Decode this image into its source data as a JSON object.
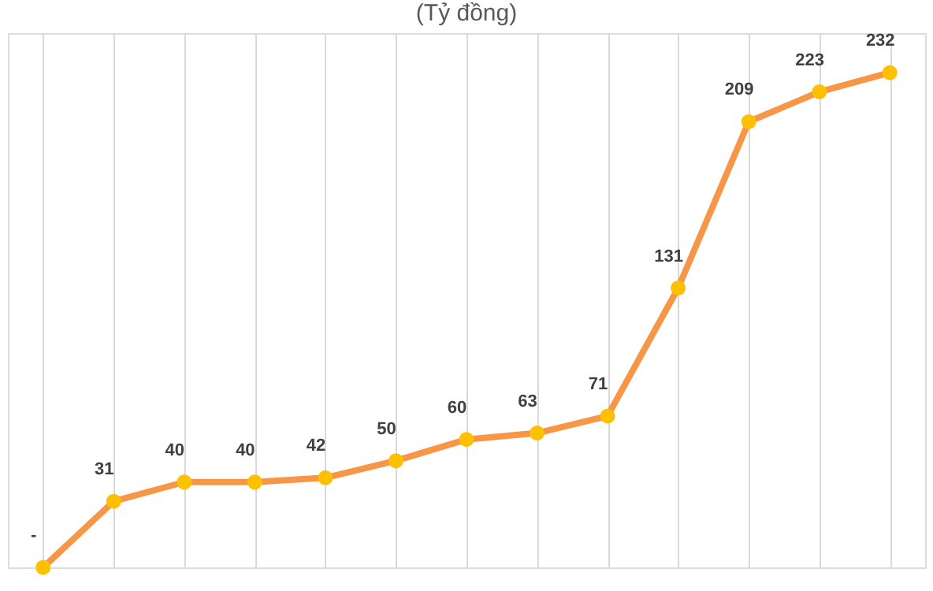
{
  "chart_data": {
    "type": "line",
    "title": "(Tỷ đồng)",
    "categories": [
      null,
      null,
      null,
      null,
      null,
      null,
      null,
      null,
      null,
      null,
      null,
      null,
      null
    ],
    "values": [
      0,
      31,
      40,
      40,
      42,
      50,
      60,
      63,
      71,
      131,
      209,
      223,
      232
    ],
    "value_labels": [
      "-",
      "31",
      "40",
      "40",
      "42",
      "50",
      "60",
      "63",
      "71",
      "131",
      "209",
      "223",
      "232"
    ],
    "color": "#f79646",
    "marker": "circle",
    "grid": "x",
    "line_style": "solid"
  }
}
